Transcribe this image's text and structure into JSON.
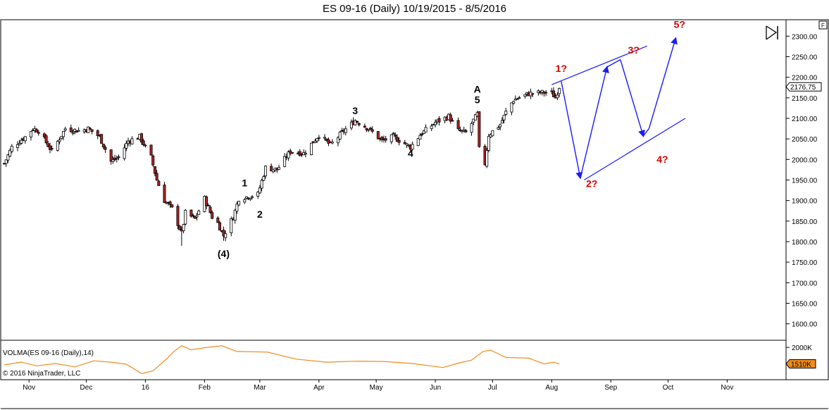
{
  "title": "ES 09-16 (Daily)  10/19/2015 - 8/5/2016",
  "panel_badge": "F",
  "colors": {
    "bull": "#ffffff",
    "bear": "#b22222",
    "candle_outline": "#000000",
    "volume_line": "#f08c1e",
    "projection": "#1a1aff",
    "price_badge_bg": "#ffffff",
    "volume_badge_bg": "#f08c1e",
    "wave_red": "#d40000"
  },
  "chart_data": {
    "type": "candlestick",
    "symbol": "ES 09-16",
    "timeframe": "Daily",
    "date_range": "10/19/2015 - 8/5/2016",
    "ylim": [
      1560,
      2340
    ],
    "y_ticks": [
      2300,
      2250,
      2200,
      2150,
      2100,
      2050,
      2000,
      1950,
      1900,
      1850,
      1800,
      1750,
      1700,
      1650,
      1600
    ],
    "y_tick_labels": [
      "2300.00",
      "2250.00",
      "2200.00",
      "2150.00",
      "2100.00",
      "2050.00",
      "2000.00",
      "1950.00",
      "1900.00",
      "1850.00",
      "1800.00",
      "1750.00",
      "1700.00",
      "1650.00",
      "1600.00"
    ],
    "x_start": "2015-10-19",
    "x_end": "2016-11-30",
    "x_ticks": [
      {
        "date": "2015-11-01",
        "label": "Nov"
      },
      {
        "date": "2015-12-01",
        "label": "Dec"
      },
      {
        "date": "2016-01-01",
        "label": "16"
      },
      {
        "date": "2016-02-01",
        "label": "Feb"
      },
      {
        "date": "2016-03-01",
        "label": "Mar"
      },
      {
        "date": "2016-04-01",
        "label": "Apr"
      },
      {
        "date": "2016-05-01",
        "label": "May"
      },
      {
        "date": "2016-06-01",
        "label": "Jun"
      },
      {
        "date": "2016-07-01",
        "label": "Jul"
      },
      {
        "date": "2016-08-01",
        "label": "Aug"
      },
      {
        "date": "2016-09-01",
        "label": "Sep"
      },
      {
        "date": "2016-10-01",
        "label": "Oct"
      },
      {
        "date": "2016-11-01",
        "label": "Nov"
      }
    ],
    "close_path": [
      [
        "2015-10-19",
        1990
      ],
      [
        "2015-10-23",
        2030
      ],
      [
        "2015-10-30",
        2055
      ],
      [
        "2015-11-03",
        2075
      ],
      [
        "2015-11-06",
        2070
      ],
      [
        "2015-11-13",
        2020
      ],
      [
        "2015-11-20",
        2075
      ],
      [
        "2015-11-27",
        2070
      ],
      [
        "2015-12-02",
        2075
      ],
      [
        "2015-12-08",
        2055
      ],
      [
        "2015-12-14",
        1995
      ],
      [
        "2015-12-18",
        2005
      ],
      [
        "2015-12-23",
        2045
      ],
      [
        "2015-12-29",
        2055
      ],
      [
        "2016-01-04",
        2005
      ],
      [
        "2016-01-07",
        1950
      ],
      [
        "2016-01-11",
        1900
      ],
      [
        "2016-01-15",
        1880
      ],
      [
        "2016-01-20",
        1820
      ],
      [
        "2016-01-22",
        1870
      ],
      [
        "2016-01-27",
        1855
      ],
      [
        "2016-02-01",
        1905
      ],
      [
        "2016-02-05",
        1860
      ],
      [
        "2016-02-08",
        1845
      ],
      [
        "2016-02-11",
        1815
      ],
      [
        "2016-02-16",
        1860
      ],
      [
        "2016-02-19",
        1905
      ],
      [
        "2016-02-24",
        1910
      ],
      [
        "2016-02-29",
        1915
      ],
      [
        "2016-03-04",
        1980
      ],
      [
        "2016-03-10",
        1975
      ],
      [
        "2016-03-17",
        2020
      ],
      [
        "2016-03-24",
        2015
      ],
      [
        "2016-04-01",
        2060
      ],
      [
        "2016-04-07",
        2035
      ],
      [
        "2016-04-13",
        2065
      ],
      [
        "2016-04-20",
        2095
      ],
      [
        "2016-04-27",
        2075
      ],
      [
        "2016-05-04",
        2045
      ],
      [
        "2016-05-10",
        2055
      ],
      [
        "2016-05-19",
        2030
      ],
      [
        "2016-05-24",
        2060
      ],
      [
        "2016-06-01",
        2090
      ],
      [
        "2016-06-08",
        2105
      ],
      [
        "2016-06-13",
        2070
      ],
      [
        "2016-06-17",
        2065
      ],
      [
        "2016-06-23",
        2110
      ],
      [
        "2016-06-24",
        2025
      ],
      [
        "2016-06-27",
        1990
      ],
      [
        "2016-06-29",
        2060
      ],
      [
        "2016-07-05",
        2085
      ],
      [
        "2016-07-08",
        2115
      ],
      [
        "2016-07-12",
        2145
      ],
      [
        "2016-07-20",
        2160
      ],
      [
        "2016-07-28",
        2163
      ],
      [
        "2016-08-01",
        2162
      ],
      [
        "2016-08-03",
        2150
      ],
      [
        "2016-08-05",
        2177
      ]
    ],
    "low_points": [
      [
        "2016-01-20",
        1790
      ],
      [
        "2016-02-11",
        1802
      ],
      [
        "2016-06-27",
        1985
      ]
    ],
    "last_price": 2176.75,
    "last_price_label": "2176.75",
    "wave_labels_black": [
      {
        "text": "(4)",
        "date": "2016-02-11",
        "price": 1762
      },
      {
        "text": "1",
        "date": "2016-02-22",
        "price": 1935
      },
      {
        "text": "2",
        "date": "2016-03-01",
        "price": 1858
      },
      {
        "text": "3",
        "date": "2016-04-20",
        "price": 2110
      },
      {
        "text": "4",
        "date": "2016-05-19",
        "price": 2007
      },
      {
        "text": "A",
        "date": "2016-06-23",
        "price": 2163
      },
      {
        "text": "5",
        "date": "2016-06-23",
        "price": 2137
      }
    ],
    "wave_labels_red": [
      {
        "text": "1?",
        "date": "2016-08-06",
        "price": 2213
      },
      {
        "text": "2?",
        "date": "2016-08-22",
        "price": 1933
      },
      {
        "text": "3?",
        "date": "2016-09-13",
        "price": 2258
      },
      {
        "text": "4?",
        "date": "2016-09-28",
        "price": 1992
      },
      {
        "text": "5?",
        "date": "2016-10-07",
        "price": 2320
      }
    ],
    "channel_lines": [
      [
        [
          "2016-08-01",
          2182
        ],
        [
          "2016-09-20",
          2276
        ]
      ],
      [
        [
          "2016-08-18",
          1950
        ],
        [
          "2016-10-10",
          2100
        ]
      ]
    ],
    "projection_path": [
      [
        "2016-08-06",
        2190
      ],
      [
        "2016-08-16",
        1955
      ],
      [
        "2016-08-30",
        2225
      ],
      [
        "2016-09-06",
        2243
      ],
      [
        "2016-09-18",
        2057
      ],
      [
        "2016-09-21",
        2075
      ],
      [
        "2016-10-05",
        2295
      ]
    ],
    "volume": {
      "label": "VOLMA(ES 09-16 (Daily),14)",
      "ylim": [
        1100,
        2150
      ],
      "y_tick_labels": [
        "2000K"
      ],
      "y_ticks": [
        2000
      ],
      "last_value_label": "1510K",
      "last_value": 1510,
      "path": [
        [
          "2015-10-19",
          1480
        ],
        [
          "2015-10-28",
          1560
        ],
        [
          "2015-11-05",
          1450
        ],
        [
          "2015-11-15",
          1520
        ],
        [
          "2015-11-25",
          1420
        ],
        [
          "2015-12-05",
          1600
        ],
        [
          "2015-12-14",
          1560
        ],
        [
          "2015-12-22",
          1500
        ],
        [
          "2015-12-30",
          1220
        ],
        [
          "2016-01-05",
          1300
        ],
        [
          "2016-01-12",
          1650
        ],
        [
          "2016-01-16",
          1880
        ],
        [
          "2016-01-20",
          2050
        ],
        [
          "2016-01-25",
          1930
        ],
        [
          "2016-02-01",
          1990
        ],
        [
          "2016-02-10",
          2050
        ],
        [
          "2016-02-18",
          1880
        ],
        [
          "2016-03-05",
          1860
        ],
        [
          "2016-03-20",
          1650
        ],
        [
          "2016-04-05",
          1560
        ],
        [
          "2016-04-20",
          1590
        ],
        [
          "2016-05-05",
          1580
        ],
        [
          "2016-05-20",
          1520
        ],
        [
          "2016-06-05",
          1400
        ],
        [
          "2016-06-13",
          1530
        ],
        [
          "2016-06-20",
          1620
        ],
        [
          "2016-06-26",
          1880
        ],
        [
          "2016-06-30",
          1920
        ],
        [
          "2016-07-08",
          1700
        ],
        [
          "2016-07-20",
          1680
        ],
        [
          "2016-07-28",
          1510
        ],
        [
          "2016-08-02",
          1560
        ],
        [
          "2016-08-05",
          1510
        ]
      ]
    }
  },
  "footer": {
    "copyright": "© 2016 NinjaTrader, LLC"
  }
}
